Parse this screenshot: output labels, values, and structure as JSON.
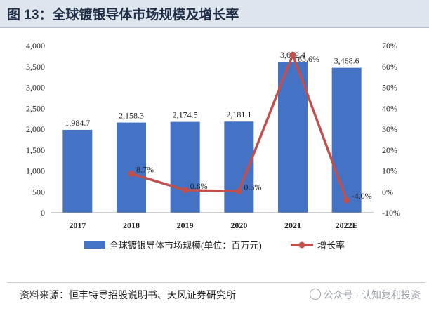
{
  "header": {
    "title": "图 13：全球镀银导体市场规模及增长率"
  },
  "chart_data": {
    "type": "bar",
    "categories": [
      "2017",
      "2018",
      "2019",
      "2020",
      "2021",
      "2022E"
    ],
    "series": [
      {
        "name": "全球镀银导体市场规模(单位：百万元)",
        "type": "bar",
        "axis": "left",
        "values": [
          1984.7,
          2158.3,
          2174.5,
          2181.1,
          3612.4,
          3468.6
        ],
        "labels": [
          "1,984.7",
          "2,158.3",
          "2,174.5",
          "2,181.1",
          "3,612.4",
          "3,468.6"
        ],
        "color": "#4472c4"
      },
      {
        "name": "增长率",
        "type": "line",
        "axis": "right",
        "values": [
          null,
          8.7,
          0.8,
          0.3,
          65.6,
          -4.0
        ],
        "labels": [
          "",
          "8.7%",
          "0.8%",
          "0.3%",
          "65.6%",
          "-4.0%"
        ],
        "color": "#c0504d"
      }
    ],
    "y_left": {
      "ylim": [
        0,
        4000
      ],
      "ticks": [
        0,
        500,
        1000,
        1500,
        2000,
        2500,
        3000,
        3500,
        4000
      ],
      "tick_labels": [
        "0",
        "500",
        "1,000",
        "1,500",
        "2,000",
        "2,500",
        "3,000",
        "3,500",
        "4,000"
      ]
    },
    "y_right": {
      "ylim": [
        -10,
        70
      ],
      "ticks": [
        -10,
        0,
        10,
        20,
        30,
        40,
        50,
        60,
        70
      ],
      "tick_labels": [
        "-10%",
        "0%",
        "10%",
        "20%",
        "30%",
        "40%",
        "50%",
        "60%",
        "70%"
      ]
    },
    "grid": false,
    "legend": "bottom"
  },
  "footer": {
    "source": "资料来源：恒丰特导招股说明书、天风证券研究所",
    "watermark": "公众号 · 认知复利投资"
  }
}
